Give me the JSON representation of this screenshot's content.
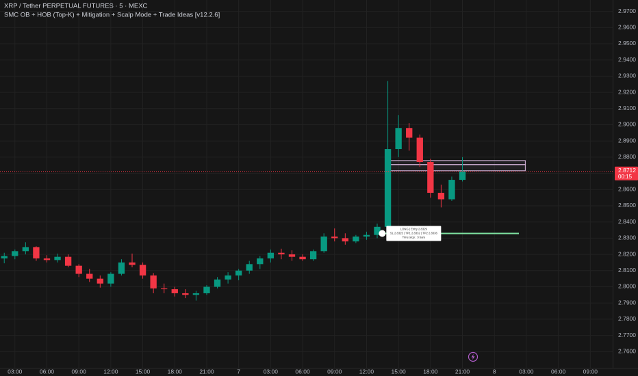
{
  "chart_data": {
    "type": "candlestick",
    "title": "XRP / Tether PERPETUAL FUTURES · 5 · MEXC",
    "subtitle": "SMC OB + HOB (Top-K) + Mitigation + Scalp Mode + Trade Ideas [v12.2.6]",
    "x": [
      2,
      3,
      4,
      5,
      6,
      7,
      8,
      9,
      10,
      11,
      12,
      13,
      14,
      15,
      16,
      17,
      18,
      19,
      20,
      21,
      22,
      23,
      24,
      25,
      26,
      27,
      28,
      29,
      30,
      31,
      32,
      33,
      34,
      35,
      36,
      37,
      38,
      39,
      40,
      41,
      42,
      43,
      44,
      45
    ],
    "open": [
      2.8175,
      2.819,
      2.822,
      2.8245,
      2.8175,
      2.8165,
      2.8185,
      2.813,
      2.808,
      2.805,
      2.802,
      2.808,
      2.815,
      2.8135,
      2.807,
      2.799,
      2.7985,
      2.796,
      2.795,
      2.796,
      2.8,
      2.8045,
      2.807,
      2.81,
      2.814,
      2.8175,
      2.821,
      2.82,
      2.8185,
      2.817,
      2.822,
      2.831,
      2.83,
      2.828,
      2.831,
      2.832,
      2.837,
      2.885,
      2.898,
      2.892,
      2.877,
      2.858,
      2.854,
      2.866
    ],
    "high": [
      2.821,
      2.823,
      2.8275,
      2.825,
      2.8195,
      2.8205,
      2.82,
      2.814,
      2.811,
      2.807,
      2.809,
      2.817,
      2.8205,
      2.815,
      2.8085,
      2.802,
      2.8,
      2.7985,
      2.7975,
      2.801,
      2.806,
      2.809,
      2.811,
      2.816,
      2.819,
      2.823,
      2.8235,
      2.8225,
      2.82,
      2.823,
      2.833,
      2.836,
      2.833,
      2.832,
      2.834,
      2.839,
      2.927,
      2.906,
      2.901,
      2.894,
      2.879,
      2.863,
      2.868,
      2.88
    ],
    "low": [
      2.8145,
      2.817,
      2.82,
      2.816,
      2.815,
      2.815,
      2.812,
      2.806,
      2.803,
      2.7995,
      2.8,
      2.807,
      2.812,
      2.805,
      2.796,
      2.796,
      2.794,
      2.793,
      2.7915,
      2.795,
      2.799,
      2.802,
      2.804,
      2.808,
      2.811,
      2.815,
      2.817,
      2.816,
      2.816,
      2.816,
      2.821,
      2.828,
      2.826,
      2.827,
      2.829,
      2.83,
      2.836,
      2.88,
      2.884,
      2.874,
      2.855,
      2.849,
      2.853,
      2.865
    ],
    "close": [
      2.819,
      2.822,
      2.8245,
      2.8175,
      2.8165,
      2.8185,
      2.813,
      2.808,
      2.805,
      2.802,
      2.808,
      2.815,
      2.8135,
      2.807,
      2.799,
      2.7985,
      2.796,
      2.795,
      2.796,
      2.8,
      2.8045,
      2.807,
      2.81,
      2.814,
      2.8175,
      2.821,
      2.82,
      2.8185,
      2.817,
      2.822,
      2.831,
      2.83,
      2.828,
      2.831,
      2.832,
      2.837,
      2.885,
      2.898,
      2.892,
      2.877,
      2.858,
      2.854,
      2.866,
      2.8712
    ],
    "up_color": "#089981",
    "down_color": "#f23645",
    "xlim": [
      1.6,
      59.1
    ],
    "xticks": [
      {
        "value": 3,
        "label": "03:00"
      },
      {
        "value": 6,
        "label": "06:00"
      },
      {
        "value": 9,
        "label": "09:00"
      },
      {
        "value": 12,
        "label": "12:00"
      },
      {
        "value": 15,
        "label": "15:00"
      },
      {
        "value": 18,
        "label": "18:00"
      },
      {
        "value": 21,
        "label": "21:00"
      },
      {
        "value": 24,
        "label": "7"
      },
      {
        "value": 27,
        "label": "03:00"
      },
      {
        "value": 30,
        "label": "06:00"
      },
      {
        "value": 33,
        "label": "09:00"
      },
      {
        "value": 36,
        "label": "12:00"
      },
      {
        "value": 39,
        "label": "15:00"
      },
      {
        "value": 42,
        "label": "18:00"
      },
      {
        "value": 45,
        "label": "21:00"
      },
      {
        "value": 48,
        "label": "8"
      },
      {
        "value": 51,
        "label": "03:00"
      },
      {
        "value": 54,
        "label": "06:00"
      },
      {
        "value": 57,
        "label": "09:00"
      }
    ],
    "ylim": [
      2.75,
      2.977
    ],
    "yticks": [
      {
        "value": 2.97,
        "label": "2.9700"
      },
      {
        "value": 2.96,
        "label": "2.9600"
      },
      {
        "value": 2.95,
        "label": "2.9500"
      },
      {
        "value": 2.94,
        "label": "2.9400"
      },
      {
        "value": 2.93,
        "label": "2.9300"
      },
      {
        "value": 2.92,
        "label": "2.9200"
      },
      {
        "value": 2.91,
        "label": "2.9100"
      },
      {
        "value": 2.9,
        "label": "2.9000"
      },
      {
        "value": 2.89,
        "label": "2.8900"
      },
      {
        "value": 2.88,
        "label": "2.8800"
      },
      {
        "value": 2.87,
        "label": "2.8700"
      },
      {
        "value": 2.86,
        "label": "2.8600"
      },
      {
        "value": 2.85,
        "label": "2.8500"
      },
      {
        "value": 2.84,
        "label": "2.8400"
      },
      {
        "value": 2.83,
        "label": "2.8300"
      },
      {
        "value": 2.82,
        "label": "2.8200"
      },
      {
        "value": 2.81,
        "label": "2.8100"
      },
      {
        "value": 2.8,
        "label": "2.8000"
      },
      {
        "value": 2.79,
        "label": "2.7900"
      },
      {
        "value": 2.78,
        "label": "2.7800"
      },
      {
        "value": 2.77,
        "label": "2.7700"
      },
      {
        "value": 2.76,
        "label": "2.7600"
      }
    ],
    "grid": true,
    "current_price": 2.8712,
    "countdown": "00:15",
    "zones": [
      {
        "top": 2.8779,
        "bottom": 2.8754,
        "start": 37.9,
        "end": 50.9,
        "color": "#e1bee7"
      },
      {
        "top": 2.8754,
        "bottom": 2.8716,
        "start": 37.9,
        "end": 50.9,
        "color": "#e1bee7"
      }
    ],
    "trade_idea": {
      "entry": 2.8329,
      "start": 37.6,
      "end": 50.3,
      "color": "#7ee2a0",
      "lines": [
        "LONG | Entry 2.8329",
        "SL 2.8325 | TP1 2.8332 | TP2 2.8336",
        "Time stop : 3 bars"
      ]
    }
  }
}
